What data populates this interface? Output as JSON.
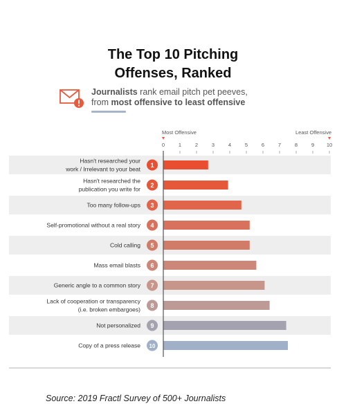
{
  "title_line1": "The Top 10 Pitching",
  "title_line2": "Offenses, Ranked",
  "subtitle": {
    "bold1": "Journalists",
    "text1": " rank email pitch pet peeves,",
    "text2": "from ",
    "bold2": "most offensive to least offensive"
  },
  "source": "Source: 2019 Fractl Survey of 500+ Journalists",
  "colors": {
    "accent": "#e85a3c",
    "icon": "#e85a3c",
    "row_band": "#eeeeee",
    "axis": "#555555"
  },
  "chart_data": {
    "type": "bar",
    "orientation": "horizontal",
    "axis_left_label": "Most Offensive",
    "axis_right_label": "Least Offensive",
    "xlim": [
      0,
      10
    ],
    "ticks": [
      "0",
      "1",
      "2",
      "3",
      "4",
      "5",
      "6",
      "7",
      "8",
      "9",
      "10"
    ],
    "categories": [
      [
        "Hasn't researched your",
        "work / Irrelevant to your beat"
      ],
      [
        "Hasn't researched the",
        "publication you write for"
      ],
      [
        "Too many follow-ups"
      ],
      [
        "Self-promotional without a real story"
      ],
      [
        "Cold calling"
      ],
      [
        "Mass email blasts"
      ],
      [
        "Generic angle to a common story"
      ],
      [
        "Lack of cooperation or transparency",
        "(i.e. broken embargoes)"
      ],
      [
        "Not personalized"
      ],
      [
        "Copy of a press release"
      ]
    ],
    "ranks": [
      "1",
      "2",
      "3",
      "4",
      "5",
      "6",
      "7",
      "8",
      "9",
      "10"
    ],
    "values": [
      2.7,
      3.9,
      4.7,
      5.2,
      5.2,
      5.6,
      6.1,
      6.4,
      7.4,
      7.5
    ],
    "bar_colors": [
      "#ea4e30",
      "#e5583a",
      "#e0654a",
      "#d8725c",
      "#d07c68",
      "#cc8778",
      "#c8958a",
      "#bd9a95",
      "#a5a2b0",
      "#9fb0c8"
    ],
    "grid": false
  }
}
